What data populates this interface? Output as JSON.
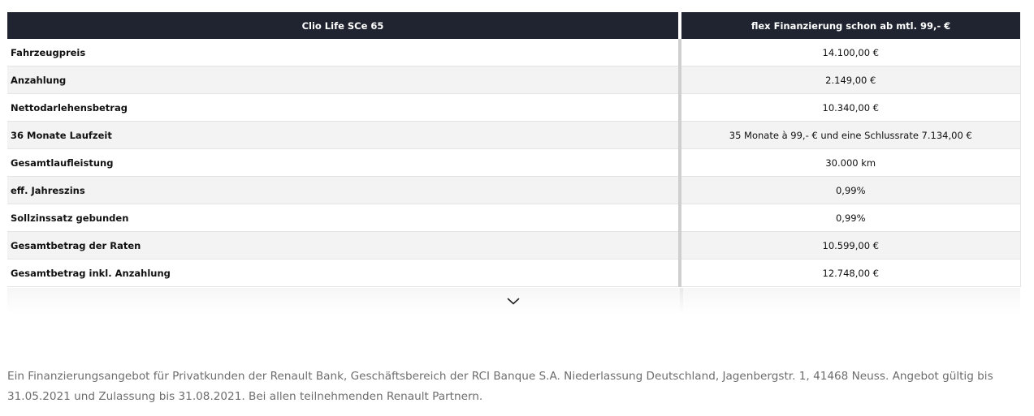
{
  "table": {
    "headers": [
      "Clio Life SCe 65",
      "flex Finanzierung schon ab mtl. 99,- €"
    ],
    "rows": [
      {
        "label": "Fahrzeugpreis",
        "value": "14.100,00 €"
      },
      {
        "label": "Anzahlung",
        "value": "2.149,00 €"
      },
      {
        "label": "Nettodarlehensbetrag",
        "value": "10.340,00 €"
      },
      {
        "label": "36 Monate Laufzeit",
        "value": "35 Monate à 99,- € und eine Schlussrate 7.134,00 €"
      },
      {
        "label": "Gesamtlaufleistung",
        "value": "30.000 km"
      },
      {
        "label": "eff. Jahreszins",
        "value": "0,99%"
      },
      {
        "label": "Sollzinssatz gebunden",
        "value": "0,99%"
      },
      {
        "label": "Gesamtbetrag der Raten",
        "value": "10.599,00 €"
      },
      {
        "label": "Gesamtbetrag inkl. Anzahlung",
        "value": "12.748,00 €"
      }
    ]
  },
  "expand_icon": "chevron-down-icon",
  "footnote": "Ein Finanzierungsangebot für Privatkunden der Renault Bank, Geschäftsbereich der RCI Banque S.A. Niederlassung Deutschland, Jagenbergstr. 1, 41468 Neuss. Angebot gültig bis 31.05.2021 und Zulassung bis 31.08.2021. Bei allen teilnehmenden Renault Partnern."
}
